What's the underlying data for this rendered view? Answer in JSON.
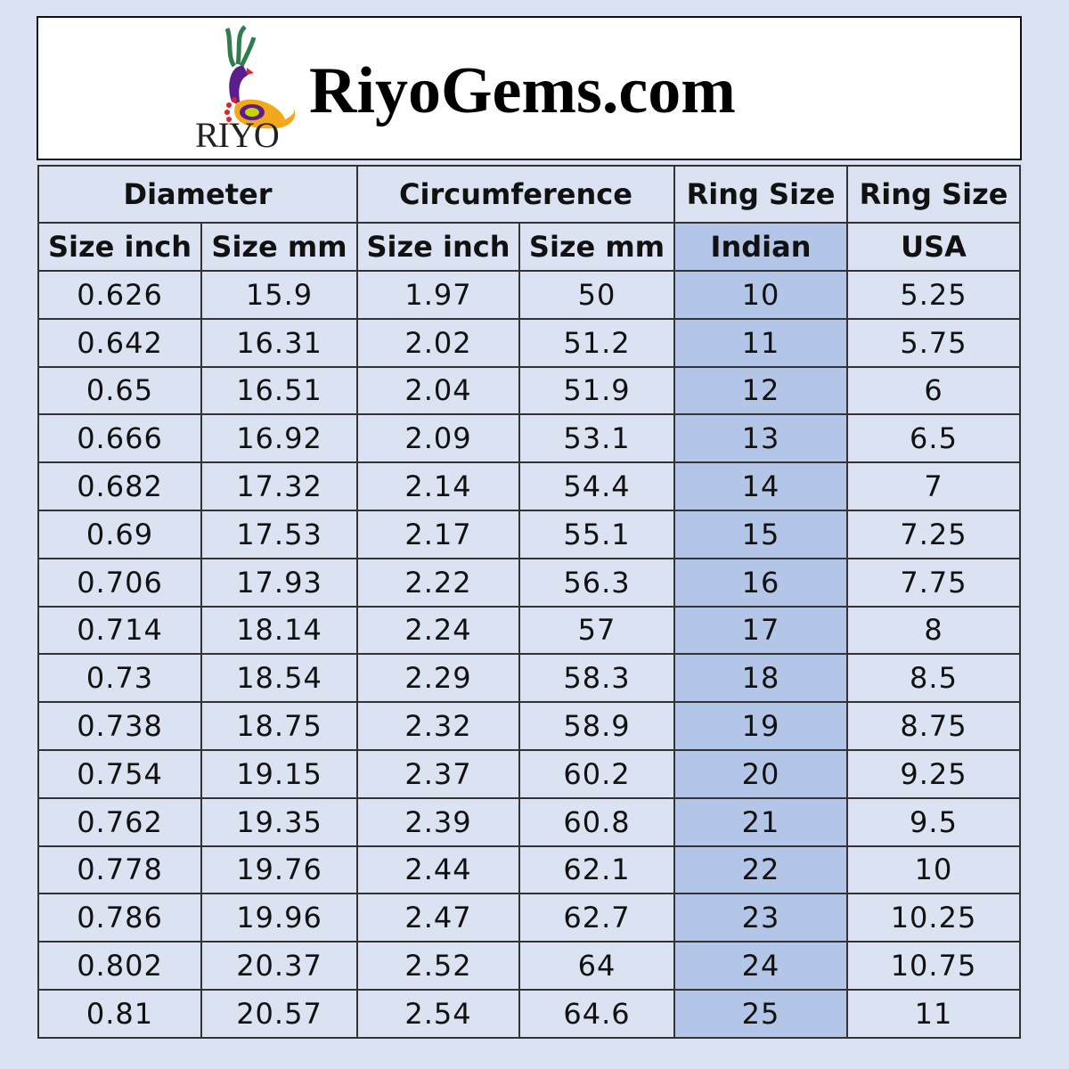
{
  "banner": {
    "logo_text": "RIYO",
    "title": "RiyoGems.com"
  },
  "colors": {
    "background": "#dbe2f2",
    "indian_column": "#b3c6e7"
  },
  "table": {
    "groups": [
      "Diameter",
      "Circumference",
      "Ring Size",
      "Ring Size"
    ],
    "subheaders": [
      "Size inch",
      "Size mm",
      "Size inch",
      "Size mm",
      "Indian",
      "USA"
    ],
    "rows": [
      [
        "0.626",
        "15.9",
        "1.97",
        "50",
        "10",
        "5.25"
      ],
      [
        "0.642",
        "16.31",
        "2.02",
        "51.2",
        "11",
        "5.75"
      ],
      [
        "0.65",
        "16.51",
        "2.04",
        "51.9",
        "12",
        "6"
      ],
      [
        "0.666",
        "16.92",
        "2.09",
        "53.1",
        "13",
        "6.5"
      ],
      [
        "0.682",
        "17.32",
        "2.14",
        "54.4",
        "14",
        "7"
      ],
      [
        "0.69",
        "17.53",
        "2.17",
        "55.1",
        "15",
        "7.25"
      ],
      [
        "0.706",
        "17.93",
        "2.22",
        "56.3",
        "16",
        "7.75"
      ],
      [
        "0.714",
        "18.14",
        "2.24",
        "57",
        "17",
        "8"
      ],
      [
        "0.73",
        "18.54",
        "2.29",
        "58.3",
        "18",
        "8.5"
      ],
      [
        "0.738",
        "18.75",
        "2.32",
        "58.9",
        "19",
        "8.75"
      ],
      [
        "0.754",
        "19.15",
        "2.37",
        "60.2",
        "20",
        "9.25"
      ],
      [
        "0.762",
        "19.35",
        "2.39",
        "60.8",
        "21",
        "9.5"
      ],
      [
        "0.778",
        "19.76",
        "2.44",
        "62.1",
        "22",
        "10"
      ],
      [
        "0.786",
        "19.96",
        "2.47",
        "62.7",
        "23",
        "10.25"
      ],
      [
        "0.802",
        "20.37",
        "2.52",
        "64",
        "24",
        "10.75"
      ],
      [
        "0.81",
        "20.57",
        "2.54",
        "64.6",
        "25",
        "11"
      ]
    ]
  }
}
